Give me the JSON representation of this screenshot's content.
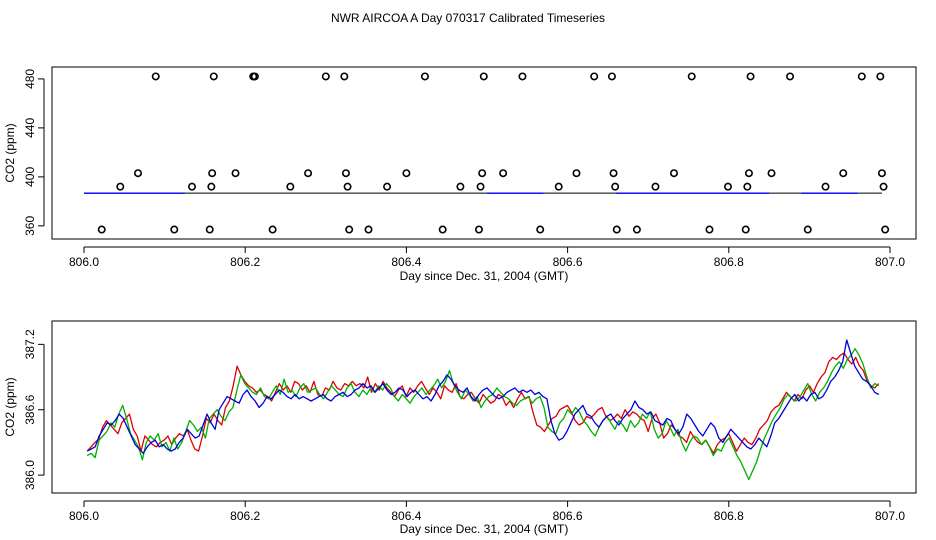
{
  "page_title": "NWR AIRCOA A  Day 070317  Calibrated Timeseries",
  "chart_data": [
    {
      "type": "scatter",
      "title": "NWR AIRCOA A  Day 070317  Calibrated Timeseries",
      "xlabel": "Day since Dec. 31, 2004 (GMT)",
      "ylabel": "CO2 (ppm)",
      "xlim": [
        806.0,
        807.0
      ],
      "ylim": [
        355,
        484
      ],
      "x_ticks": [
        806.0,
        806.2,
        806.4,
        806.6,
        806.8,
        807.0
      ],
      "x_tick_labels": [
        "806.0",
        "806.2",
        "806.4",
        "806.6",
        "806.8",
        "807.0"
      ],
      "y_ticks": [
        360,
        400,
        440,
        480
      ],
      "y_tick_labels": [
        "360",
        "400",
        "440",
        "480"
      ],
      "line_value": 386.7,
      "line_colors": [
        "#000000",
        "#0000ff"
      ],
      "points": [
        {
          "x": 806.022,
          "y": 357
        },
        {
          "x": 806.045,
          "y": 392
        },
        {
          "x": 806.067,
          "y": 403
        },
        {
          "x": 806.089,
          "y": 482
        },
        {
          "x": 806.112,
          "y": 357
        },
        {
          "x": 806.134,
          "y": 392
        },
        {
          "x": 806.156,
          "y": 357
        },
        {
          "x": 806.158,
          "y": 392
        },
        {
          "x": 806.159,
          "y": 403
        },
        {
          "x": 806.161,
          "y": 482
        },
        {
          "x": 806.188,
          "y": 403
        },
        {
          "x": 806.21,
          "y": 482
        },
        {
          "x": 806.212,
          "y": 482
        },
        {
          "x": 806.234,
          "y": 357
        },
        {
          "x": 806.256,
          "y": 392
        },
        {
          "x": 806.278,
          "y": 403
        },
        {
          "x": 806.3,
          "y": 482
        },
        {
          "x": 806.323,
          "y": 482
        },
        {
          "x": 806.325,
          "y": 403
        },
        {
          "x": 806.327,
          "y": 392
        },
        {
          "x": 806.329,
          "y": 357
        },
        {
          "x": 806.353,
          "y": 357
        },
        {
          "x": 806.376,
          "y": 392
        },
        {
          "x": 806.4,
          "y": 403
        },
        {
          "x": 806.423,
          "y": 482
        },
        {
          "x": 806.445,
          "y": 357
        },
        {
          "x": 806.467,
          "y": 392
        },
        {
          "x": 806.49,
          "y": 357
        },
        {
          "x": 806.492,
          "y": 392
        },
        {
          "x": 806.494,
          "y": 403
        },
        {
          "x": 806.496,
          "y": 482
        },
        {
          "x": 806.52,
          "y": 403
        },
        {
          "x": 806.544,
          "y": 482
        },
        {
          "x": 806.566,
          "y": 357
        },
        {
          "x": 806.589,
          "y": 392
        },
        {
          "x": 806.611,
          "y": 403
        },
        {
          "x": 806.633,
          "y": 482
        },
        {
          "x": 806.655,
          "y": 482
        },
        {
          "x": 806.657,
          "y": 403
        },
        {
          "x": 806.659,
          "y": 392
        },
        {
          "x": 806.661,
          "y": 357
        },
        {
          "x": 806.686,
          "y": 357
        },
        {
          "x": 806.709,
          "y": 392
        },
        {
          "x": 806.732,
          "y": 403
        },
        {
          "x": 806.754,
          "y": 482
        },
        {
          "x": 806.776,
          "y": 357
        },
        {
          "x": 806.799,
          "y": 392
        },
        {
          "x": 806.821,
          "y": 357
        },
        {
          "x": 806.823,
          "y": 392
        },
        {
          "x": 806.825,
          "y": 403
        },
        {
          "x": 806.827,
          "y": 482
        },
        {
          "x": 806.853,
          "y": 403
        },
        {
          "x": 806.876,
          "y": 482
        },
        {
          "x": 806.898,
          "y": 357
        },
        {
          "x": 806.92,
          "y": 392
        },
        {
          "x": 806.942,
          "y": 403
        },
        {
          "x": 806.965,
          "y": 482
        },
        {
          "x": 806.988,
          "y": 482
        },
        {
          "x": 806.99,
          "y": 403
        },
        {
          "x": 806.992,
          "y": 392
        },
        {
          "x": 806.994,
          "y": 357
        }
      ]
    },
    {
      "type": "line",
      "xlabel": "Day since Dec. 31, 2004 (GMT)",
      "ylabel": "CO2 (ppm)",
      "xlim": [
        806.0,
        807.0
      ],
      "ylim": [
        385.9,
        387.35
      ],
      "x_start": 806.004,
      "x_end": 806.986,
      "x_ticks": [
        806.0,
        806.2,
        806.4,
        806.6,
        806.8,
        807.0
      ],
      "x_tick_labels": [
        "806.0",
        "806.2",
        "806.4",
        "806.6",
        "806.8",
        "807.0"
      ],
      "y_ticks": [
        386.0,
        386.6,
        387.2
      ],
      "y_tick_labels": [
        "386.0",
        "386.6",
        "387.2"
      ],
      "series": [
        {
          "name": "red",
          "color": "#dd0000",
          "values": [
            386.22,
            386.26,
            386.3,
            386.33,
            386.44,
            386.5,
            386.46,
            386.42,
            386.38,
            386.48,
            386.52,
            386.56,
            386.42,
            386.36,
            386.22,
            386.36,
            386.32,
            386.28,
            386.26,
            386.3,
            386.32,
            386.36,
            386.28,
            386.34,
            386.38,
            386.36,
            386.42,
            386.32,
            386.24,
            386.22,
            386.36,
            386.52,
            386.48,
            386.56,
            386.5,
            386.46,
            386.62,
            386.68,
            386.82,
            387.0,
            386.92,
            386.86,
            386.82,
            386.8,
            386.76,
            386.78,
            386.74,
            386.72,
            386.68,
            386.76,
            386.84,
            386.78,
            386.82,
            386.76,
            386.86,
            386.84,
            386.78,
            386.82,
            386.76,
            386.86,
            386.74,
            386.72,
            386.8,
            386.78,
            386.86,
            386.8,
            386.78,
            386.84,
            386.82,
            386.86,
            386.82,
            386.84,
            386.8,
            386.9,
            386.76,
            386.84,
            386.78,
            386.86,
            386.8,
            386.76,
            386.72,
            386.78,
            386.82,
            386.72,
            386.8,
            386.76,
            386.82,
            386.86,
            386.8,
            386.74,
            386.8,
            386.76,
            386.7,
            386.82,
            386.78,
            386.76,
            386.84,
            386.72,
            386.7,
            386.74,
            386.76,
            386.7,
            386.66,
            386.74,
            386.7,
            386.66,
            386.68,
            386.74,
            386.72,
            386.64,
            386.68,
            386.62,
            386.7,
            386.76,
            386.7,
            386.72,
            386.58,
            386.46,
            386.44,
            386.4,
            386.46,
            386.52,
            386.54,
            386.6,
            386.62,
            386.64,
            386.58,
            386.5,
            386.46,
            386.48,
            386.54,
            386.52,
            386.56,
            386.6,
            386.62,
            386.54,
            386.5,
            386.52,
            386.56,
            386.52,
            386.6,
            386.54,
            386.58,
            386.56,
            386.52,
            386.5,
            386.4,
            386.52,
            386.56,
            386.48,
            386.34,
            386.38,
            386.46,
            386.42,
            386.36,
            386.34,
            386.3,
            386.4,
            386.34,
            386.3,
            386.28,
            386.32,
            386.26,
            386.2,
            386.28,
            386.32,
            386.34,
            386.38,
            386.3,
            386.22,
            386.28,
            386.34,
            386.3,
            386.28,
            386.34,
            386.42,
            386.46,
            386.5,
            386.58,
            386.62,
            386.64,
            386.7,
            386.76,
            386.72,
            386.68,
            386.74,
            386.7,
            386.78,
            386.82,
            386.76,
            386.84,
            386.9,
            386.94,
            387.04,
            387.08,
            387.06,
            387.1,
            387.12,
            387.06,
            387.02,
            387.08,
            387.0,
            386.96,
            386.86,
            386.82,
            386.8,
            386.84
          ]
        },
        {
          "name": "green",
          "color": "#00b000",
          "values": [
            386.18,
            386.2,
            386.16,
            386.32,
            386.36,
            386.4,
            386.48,
            386.44,
            386.56,
            386.64,
            386.52,
            386.38,
            386.32,
            386.26,
            386.14,
            386.3,
            386.36,
            386.32,
            386.38,
            386.26,
            386.3,
            386.22,
            386.34,
            386.24,
            386.3,
            386.4,
            386.5,
            386.46,
            386.4,
            386.44,
            386.34,
            386.52,
            386.56,
            386.6,
            386.54,
            386.5,
            386.58,
            386.62,
            386.78,
            386.92,
            386.84,
            386.8,
            386.76,
            386.74,
            386.8,
            386.72,
            386.7,
            386.76,
            386.82,
            386.74,
            386.88,
            386.76,
            386.78,
            386.72,
            386.8,
            386.84,
            386.76,
            386.78,
            386.8,
            386.74,
            386.7,
            386.76,
            386.82,
            386.78,
            386.74,
            386.72,
            386.8,
            386.84,
            386.76,
            386.72,
            386.78,
            386.74,
            386.8,
            386.76,
            386.82,
            386.78,
            386.84,
            386.8,
            386.72,
            386.68,
            386.74,
            386.7,
            386.66,
            386.72,
            386.76,
            386.8,
            386.74,
            386.78,
            386.82,
            386.88,
            386.8,
            386.86,
            386.96,
            386.84,
            386.76,
            386.7,
            386.78,
            386.74,
            386.68,
            386.72,
            386.62,
            386.68,
            386.72,
            386.74,
            386.8,
            386.76,
            386.72,
            386.7,
            386.66,
            386.64,
            386.68,
            386.7,
            386.72,
            386.66,
            386.7,
            386.72,
            386.62,
            386.44,
            386.4,
            386.38,
            386.48,
            386.52,
            386.6,
            386.56,
            386.62,
            386.58,
            386.5,
            386.46,
            386.4,
            386.36,
            386.44,
            386.5,
            386.54,
            386.48,
            386.42,
            386.5,
            386.46,
            386.4,
            386.5,
            386.44,
            386.48,
            386.56,
            386.52,
            386.58,
            386.42,
            386.34,
            386.38,
            386.5,
            386.44,
            386.36,
            386.42,
            386.3,
            386.22,
            386.3,
            386.36,
            386.34,
            386.28,
            386.32,
            386.26,
            386.18,
            386.24,
            386.22,
            386.3,
            386.34,
            386.26,
            386.18,
            386.12,
            386.04,
            385.96,
            386.04,
            386.12,
            386.24,
            386.34,
            386.42,
            386.5,
            386.56,
            386.62,
            386.7,
            386.74,
            386.7,
            386.68,
            386.72,
            386.78,
            386.84,
            386.74,
            386.68,
            386.76,
            386.8,
            386.86,
            386.94,
            387.0,
            387.04,
            386.98,
            387.06,
            387.1,
            387.16,
            387.1,
            387.02,
            386.9,
            386.8,
            386.84,
            386.82
          ]
        },
        {
          "name": "blue",
          "color": "#0000dd",
          "values": [
            386.22,
            386.24,
            386.26,
            386.36,
            386.42,
            386.48,
            386.46,
            386.5,
            386.56,
            386.52,
            386.44,
            386.36,
            386.28,
            386.24,
            386.2,
            386.26,
            386.3,
            386.32,
            386.26,
            386.28,
            386.24,
            386.22,
            386.24,
            386.3,
            386.34,
            386.42,
            386.38,
            386.34,
            386.36,
            386.46,
            386.56,
            386.48,
            386.42,
            386.6,
            386.66,
            386.72,
            386.7,
            386.68,
            386.66,
            386.74,
            386.78,
            386.72,
            386.68,
            386.62,
            386.66,
            386.72,
            386.7,
            386.74,
            386.78,
            386.76,
            386.72,
            386.7,
            386.74,
            386.7,
            386.72,
            386.7,
            386.68,
            386.7,
            386.72,
            386.74,
            386.7,
            386.68,
            386.72,
            386.74,
            386.76,
            386.72,
            386.74,
            386.78,
            386.8,
            386.84,
            386.8,
            386.82,
            386.76,
            386.8,
            386.84,
            386.78,
            386.74,
            386.76,
            386.8,
            386.78,
            386.72,
            386.76,
            386.78,
            386.74,
            386.7,
            386.72,
            386.68,
            386.74,
            386.82,
            386.86,
            386.92,
            386.88,
            386.82,
            386.78,
            386.76,
            386.8,
            386.72,
            386.68,
            386.74,
            386.78,
            386.8,
            386.76,
            386.72,
            386.7,
            386.72,
            386.76,
            386.78,
            386.8,
            386.76,
            386.78,
            386.76,
            386.78,
            386.74,
            386.76,
            386.72,
            386.7,
            386.5,
            386.38,
            386.32,
            386.34,
            386.4,
            386.48,
            386.56,
            386.6,
            386.64,
            386.56,
            386.54,
            386.48,
            386.44,
            386.5,
            386.54,
            386.56,
            386.5,
            386.46,
            386.52,
            386.56,
            386.6,
            386.68,
            386.62,
            386.6,
            386.56,
            386.58,
            386.5,
            386.48,
            386.46,
            386.52,
            386.5,
            386.42,
            386.38,
            386.44,
            386.56,
            386.52,
            386.46,
            386.4,
            386.36,
            386.42,
            386.48,
            386.44,
            386.34,
            386.3,
            386.36,
            386.42,
            386.38,
            386.34,
            386.3,
            386.26,
            386.24,
            386.28,
            386.34,
            386.3,
            386.26,
            386.36,
            386.48,
            386.52,
            386.58,
            386.64,
            386.7,
            386.74,
            386.68,
            386.72,
            386.68,
            386.74,
            386.76,
            386.7,
            386.72,
            386.78,
            386.86,
            386.9,
            386.96,
            387.04,
            387.24,
            387.12,
            387.0,
            386.94,
            386.88,
            386.86,
            386.82,
            386.76,
            386.74
          ]
        }
      ]
    }
  ]
}
